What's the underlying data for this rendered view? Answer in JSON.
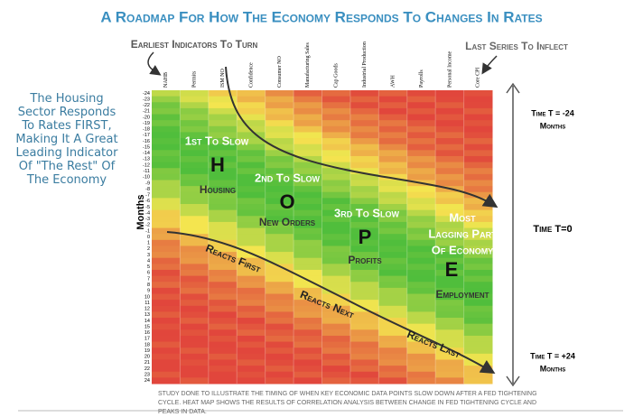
{
  "title": "A Roadmap For How The Economy Responds To Changes In Rates",
  "annotations": {
    "left_note": "The Housing Sector Responds To Rates FIRST, Making It A Great Leading Indicator Of \"The Rest\" Of The Economy",
    "earliest": "Earliest Indicators To Turn",
    "last": "Last Series To Inflect"
  },
  "heatmap": {
    "row_axis_title": "Months",
    "rows": [
      -24,
      -23,
      -22,
      -21,
      -20,
      -19,
      -18,
      -17,
      -16,
      -15,
      -14,
      -13,
      -12,
      -11,
      -10,
      -9,
      -8,
      -7,
      -6,
      -5,
      -4,
      -3,
      -2,
      -1,
      0,
      1,
      2,
      3,
      4,
      5,
      6,
      7,
      8,
      9,
      10,
      11,
      12,
      13,
      14,
      15,
      16,
      17,
      18,
      19,
      20,
      21,
      22,
      23,
      24
    ],
    "columns": [
      "NAHB",
      "Permits",
      "ISM NO",
      "Confidence",
      "Consumer NO",
      "Manufacturing Sales",
      "Cap Goods",
      "Industrial Production",
      "AWH",
      "Payrolls",
      "Personal Income",
      "Core CPI"
    ]
  },
  "stages": [
    {
      "order": "1st To Slow",
      "letter": "H",
      "label": "Housing"
    },
    {
      "order": "2nd To Slow",
      "letter": "O",
      "label": "New Orders"
    },
    {
      "order": "3rd To Slow",
      "letter": "P",
      "label": "Profits"
    },
    {
      "order": "Most Lagging Part Of Economy",
      "letter": "E",
      "label": "Employment"
    }
  ],
  "reactions": [
    "Reacts First",
    "Reacts Next",
    "Reacts Last"
  ],
  "timeline": [
    "Time T = -24",
    "Months",
    "Time T=0",
    "Time T = +24",
    "Months"
  ],
  "footnote": "Study done to illustrate the timing of when key economic data points slow down after a Fed tightening cycle. Heat map shows the results of correlation analysis between change in Fed tightening cycle and peaks in data."
}
